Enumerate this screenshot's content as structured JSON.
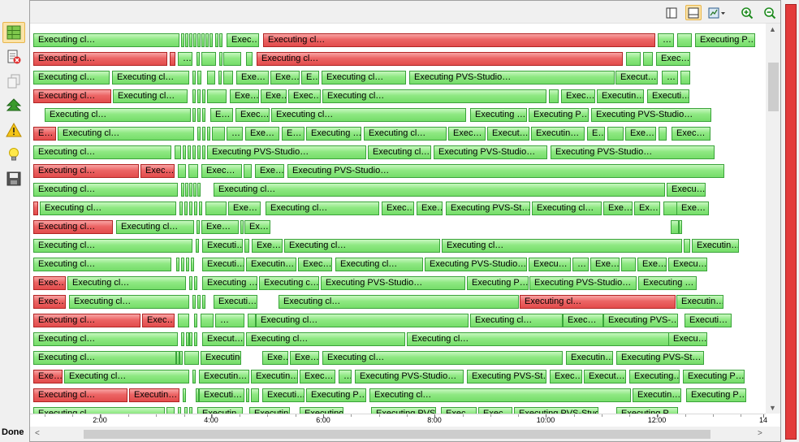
{
  "status": {
    "text": "Done"
  },
  "colors": {
    "success": "#76dd6a",
    "failure": "#e24c4c",
    "progress": "#e33b3b"
  },
  "left_toolbar": [
    {
      "name": "execution-grid-icon",
      "active": true
    },
    {
      "name": "remove-errors-icon",
      "active": false
    },
    {
      "name": "copy-icon",
      "active": false
    },
    {
      "name": "go-up-icon",
      "active": false
    },
    {
      "name": "warning-icon",
      "active": false
    },
    {
      "name": "lightbulb-icon",
      "active": false
    },
    {
      "name": "save-icon",
      "active": false
    }
  ],
  "top_toolbar": [
    {
      "name": "split-view-icon",
      "active": false
    },
    {
      "name": "single-view-icon",
      "active": true
    },
    {
      "name": "chart-dropdown-icon",
      "active": false
    },
    {
      "name": "zoom-in-icon",
      "active": false
    },
    {
      "name": "zoom-out-icon",
      "active": false
    }
  ],
  "axis": {
    "labels": [
      "2:00",
      "4:00",
      "6:00",
      "8:00",
      "10:00",
      "12:00",
      "14"
    ]
  },
  "rows": [
    [
      [
        4,
        180,
        "g",
        "Executing cl…"
      ],
      [
        186,
        4,
        "g",
        ""
      ],
      [
        191,
        4,
        "g",
        ""
      ],
      [
        196,
        4,
        "g",
        ""
      ],
      [
        201,
        4,
        "g",
        ""
      ],
      [
        206,
        4,
        "g",
        ""
      ],
      [
        211,
        4,
        "g",
        ""
      ],
      [
        216,
        4,
        "g",
        ""
      ],
      [
        221,
        4,
        "g",
        ""
      ],
      [
        228,
        4,
        "g",
        ""
      ],
      [
        233,
        4,
        "g",
        ""
      ],
      [
        242,
        40,
        "g",
        "Exec…"
      ],
      [
        287,
        483,
        "r",
        "Executing cl…"
      ],
      [
        773,
        20,
        "g",
        "…"
      ],
      [
        797,
        18,
        "g",
        ""
      ],
      [
        819,
        74,
        "g",
        "Executing P…"
      ]
    ],
    [
      [
        4,
        165,
        "r",
        "Executing cl…"
      ],
      [
        172,
        7,
        "r",
        ""
      ],
      [
        182,
        18,
        "g",
        "…"
      ],
      [
        205,
        4,
        "g",
        ""
      ],
      [
        211,
        18,
        "g",
        ""
      ],
      [
        233,
        4,
        "g",
        ""
      ],
      [
        238,
        22,
        "g",
        ""
      ],
      [
        266,
        8,
        "g",
        ""
      ],
      [
        279,
        451,
        "r",
        "Executing cl…"
      ],
      [
        734,
        18,
        "g",
        ""
      ],
      [
        755,
        12,
        "g",
        ""
      ],
      [
        771,
        42,
        "g",
        "Exec…"
      ]
    ],
    [
      [
        4,
        94,
        "g",
        "Executing cl…"
      ],
      [
        101,
        95,
        "g",
        "Executing cl…"
      ],
      [
        200,
        4,
        "g",
        ""
      ],
      [
        206,
        5,
        "g",
        ""
      ],
      [
        218,
        10,
        "g",
        ""
      ],
      [
        232,
        4,
        "g",
        ""
      ],
      [
        238,
        12,
        "g",
        ""
      ],
      [
        254,
        40,
        "g",
        "Exe…"
      ],
      [
        296,
        36,
        "g",
        "Exe…"
      ],
      [
        334,
        22,
        "g",
        "E…"
      ],
      [
        359,
        104,
        "g",
        "Executing cl…"
      ],
      [
        467,
        253,
        "g",
        "Executing PVS-Studio…"
      ],
      [
        721,
        52,
        "g",
        "Execut…"
      ],
      [
        778,
        20,
        "g",
        "…"
      ],
      [
        801,
        12,
        "g",
        ""
      ]
    ],
    [
      [
        4,
        96,
        "r",
        "Executing cl…"
      ],
      [
        102,
        92,
        "g",
        "Executing cl…"
      ],
      [
        200,
        4,
        "g",
        ""
      ],
      [
        206,
        4,
        "g",
        ""
      ],
      [
        212,
        4,
        "g",
        ""
      ],
      [
        218,
        24,
        "g",
        ""
      ],
      [
        246,
        36,
        "g",
        "Exe…"
      ],
      [
        284,
        32,
        "g",
        "Exe…"
      ],
      [
        318,
        40,
        "g",
        "Exec…"
      ],
      [
        360,
        276,
        "g",
        "Executing cl…"
      ],
      [
        639,
        12,
        "g",
        ""
      ],
      [
        654,
        42,
        "g",
        "Exec…"
      ],
      [
        698,
        58,
        "g",
        "Executin…"
      ],
      [
        760,
        52,
        "g",
        "Executi…"
      ]
    ],
    [
      [
        18,
        180,
        "g",
        "Executing cl…"
      ],
      [
        200,
        4,
        "g",
        ""
      ],
      [
        206,
        4,
        "g",
        ""
      ],
      [
        212,
        4,
        "g",
        ""
      ],
      [
        222,
        28,
        "g",
        "E…"
      ],
      [
        253,
        42,
        "g",
        "Exec…"
      ],
      [
        297,
        240,
        "g",
        "Executing cl…"
      ],
      [
        542,
        70,
        "g",
        "Executing …"
      ],
      [
        614,
        74,
        "g",
        "Executing P…"
      ],
      [
        691,
        148,
        "g",
        "Executing PVS-Studio…"
      ]
    ],
    [
      [
        4,
        28,
        "r",
        "E…"
      ],
      [
        34,
        168,
        "g",
        "Executing cl…"
      ],
      [
        206,
        4,
        "g",
        ""
      ],
      [
        212,
        4,
        "g",
        ""
      ],
      [
        218,
        4,
        "g",
        ""
      ],
      [
        224,
        16,
        "g",
        ""
      ],
      [
        242,
        20,
        "g",
        "…"
      ],
      [
        265,
        42,
        "g",
        "Exe…"
      ],
      [
        310,
        28,
        "g",
        "E…"
      ],
      [
        340,
        68,
        "g",
        "Executing …"
      ],
      [
        411,
        102,
        "g",
        "Executing cl…"
      ],
      [
        515,
        46,
        "g",
        "Exec…"
      ],
      [
        563,
        52,
        "g",
        "Execut…"
      ],
      [
        617,
        66,
        "g",
        "Executin…"
      ],
      [
        686,
        22,
        "g",
        "E…"
      ],
      [
        711,
        20,
        "g",
        ""
      ],
      [
        733,
        38,
        "g",
        "Exe…"
      ],
      [
        774,
        10,
        "g",
        ""
      ],
      [
        790,
        48,
        "g",
        "Exec…"
      ]
    ],
    [
      [
        4,
        170,
        "g",
        "Executing cl…"
      ],
      [
        178,
        8,
        "g",
        ""
      ],
      [
        188,
        4,
        "g",
        ""
      ],
      [
        194,
        4,
        "g",
        ""
      ],
      [
        200,
        4,
        "g",
        ""
      ],
      [
        206,
        4,
        "g",
        ""
      ],
      [
        212,
        4,
        "g",
        ""
      ],
      [
        218,
        196,
        "g",
        "Executing PVS-Studio…"
      ],
      [
        416,
        78,
        "g",
        "Executing cl…"
      ],
      [
        497,
        140,
        "g",
        "Executing PVS-Studio…"
      ],
      [
        641,
        202,
        "g",
        "Executing PVS-Studio…"
      ]
    ],
    [
      [
        4,
        130,
        "r",
        "Executing cl…"
      ],
      [
        136,
        42,
        "r",
        "Exec…"
      ],
      [
        182,
        10,
        "g",
        ""
      ],
      [
        195,
        12,
        "g",
        ""
      ],
      [
        211,
        50,
        "g",
        "Exec…"
      ],
      [
        263,
        10,
        "g",
        ""
      ],
      [
        277,
        36,
        "g",
        "Exe…"
      ],
      [
        317,
        538,
        "g",
        "Executing PVS-Studio…"
      ]
    ],
    [
      [
        4,
        178,
        "g",
        "Executing cl…"
      ],
      [
        186,
        4,
        "g",
        ""
      ],
      [
        191,
        4,
        "g",
        ""
      ],
      [
        196,
        4,
        "g",
        ""
      ],
      [
        201,
        4,
        "g",
        ""
      ],
      [
        206,
        4,
        "g",
        ""
      ],
      [
        226,
        556,
        "g",
        "Executing cl…"
      ],
      [
        784,
        48,
        "g",
        "Execu…"
      ]
    ],
    [
      [
        4,
        6,
        "r",
        ""
      ],
      [
        12,
        168,
        "g",
        "Executing cl…"
      ],
      [
        184,
        4,
        "g",
        ""
      ],
      [
        190,
        4,
        "g",
        ""
      ],
      [
        196,
        4,
        "g",
        ""
      ],
      [
        202,
        4,
        "g",
        ""
      ],
      [
        208,
        4,
        "g",
        ""
      ],
      [
        216,
        26,
        "g",
        ""
      ],
      [
        244,
        40,
        "g",
        "Exe…"
      ],
      [
        290,
        140,
        "g",
        "Executing cl…"
      ],
      [
        433,
        40,
        "g",
        "Exec…"
      ],
      [
        476,
        32,
        "g",
        "Exe…"
      ],
      [
        512,
        104,
        "g",
        "Executing PVS-St…"
      ],
      [
        618,
        86,
        "g",
        "Executing cl…"
      ],
      [
        706,
        36,
        "g",
        "Exe…"
      ],
      [
        744,
        32,
        "g",
        "Ex…"
      ],
      [
        780,
        18,
        "g",
        ""
      ],
      [
        796,
        40,
        "g",
        "Exe…"
      ]
    ],
    [
      [
        4,
        98,
        "r",
        "Executing cl…"
      ],
      [
        106,
        96,
        "g",
        "Executing cl…"
      ],
      [
        205,
        4,
        "g",
        ""
      ],
      [
        211,
        46,
        "g",
        "Exe…"
      ],
      [
        259,
        4,
        "g",
        ""
      ],
      [
        264,
        32,
        "g",
        "Ex…"
      ],
      [
        789,
        10,
        "g",
        ""
      ],
      [
        799,
        4,
        "g",
        ""
      ]
    ],
    [
      [
        4,
        196,
        "g",
        "Executing cl…"
      ],
      [
        204,
        4,
        "g",
        ""
      ],
      [
        212,
        50,
        "g",
        "Executi…"
      ],
      [
        264,
        6,
        "g",
        ""
      ],
      [
        273,
        38,
        "g",
        "Exe…"
      ],
      [
        313,
        192,
        "g",
        "Executing cl…"
      ],
      [
        507,
        296,
        "g",
        "Executing cl…"
      ],
      [
        805,
        8,
        "g",
        ""
      ],
      [
        815,
        58,
        "g",
        "Executin…"
      ]
    ],
    [
      [
        4,
        170,
        "g",
        "Executing cl…"
      ],
      [
        180,
        4,
        "g",
        ""
      ],
      [
        186,
        4,
        "g",
        ""
      ],
      [
        192,
        4,
        "g",
        ""
      ],
      [
        198,
        4,
        "g",
        ""
      ],
      [
        212,
        52,
        "g",
        "Executi…"
      ],
      [
        266,
        62,
        "g",
        "Executin…"
      ],
      [
        330,
        42,
        "g",
        "Exec…"
      ],
      [
        376,
        108,
        "g",
        "Executing cl…"
      ],
      [
        486,
        126,
        "g",
        "Executing PVS-Studio…"
      ],
      [
        614,
        52,
        "g",
        "Execu…"
      ],
      [
        668,
        20,
        "g",
        "…"
      ],
      [
        690,
        36,
        "g",
        "Exe…"
      ],
      [
        728,
        18,
        "g",
        ""
      ],
      [
        748,
        36,
        "g",
        "Exe…"
      ],
      [
        786,
        48,
        "g",
        "Execu…"
      ]
    ],
    [
      [
        4,
        40,
        "r",
        "Exec…"
      ],
      [
        46,
        146,
        "g",
        "Executing cl…"
      ],
      [
        196,
        4,
        "g",
        ""
      ],
      [
        202,
        4,
        "g",
        ""
      ],
      [
        212,
        68,
        "g",
        "Executing …"
      ],
      [
        282,
        74,
        "g",
        "Executing c…"
      ],
      [
        358,
        178,
        "g",
        "Executing PVS-Studio…"
      ],
      [
        538,
        76,
        "g",
        "Executing P…"
      ],
      [
        615,
        132,
        "g",
        "Executing PVS-Studio…"
      ],
      [
        749,
        72,
        "g",
        "Executing …"
      ]
    ],
    [
      [
        4,
        40,
        "r",
        "Exec…"
      ],
      [
        48,
        148,
        "g",
        "Executing cl…"
      ],
      [
        200,
        4,
        "g",
        ""
      ],
      [
        206,
        4,
        "g",
        ""
      ],
      [
        212,
        4,
        "g",
        ""
      ],
      [
        226,
        54,
        "g",
        "Executi…"
      ],
      [
        306,
        296,
        "g",
        "Executing cl…"
      ],
      [
        603,
        192,
        "r",
        "Executing cl…"
      ],
      [
        796,
        58,
        "g",
        "Executin…"
      ]
    ],
    [
      [
        4,
        132,
        "r",
        "Executing cl…"
      ],
      [
        138,
        40,
        "r",
        "Exec…"
      ],
      [
        182,
        14,
        "g",
        ""
      ],
      [
        202,
        4,
        "g",
        ""
      ],
      [
        210,
        16,
        "g",
        ""
      ],
      [
        228,
        36,
        "g",
        "…"
      ],
      [
        268,
        10,
        "g",
        ""
      ],
      [
        278,
        262,
        "g",
        "Executing cl…"
      ],
      [
        542,
        114,
        "g",
        "Executing cl…"
      ],
      [
        656,
        50,
        "g",
        "Exec…"
      ],
      [
        706,
        92,
        "g",
        "Executing PVS-…"
      ],
      [
        806,
        58,
        "g",
        "Executi…"
      ]
    ],
    [
      [
        4,
        178,
        "g",
        "Executing cl…"
      ],
      [
        186,
        4,
        "g",
        ""
      ],
      [
        192,
        4,
        "g",
        ""
      ],
      [
        196,
        4,
        "g",
        ""
      ],
      [
        202,
        4,
        "g",
        ""
      ],
      [
        212,
        52,
        "g",
        "Execut…"
      ],
      [
        266,
        196,
        "g",
        "Executing cl…"
      ],
      [
        464,
        342,
        "g",
        "Executing cl…"
      ],
      [
        786,
        48,
        "g",
        "Execu…"
      ]
    ],
    [
      [
        4,
        176,
        "g",
        "Executing cl…"
      ],
      [
        180,
        4,
        "g",
        ""
      ],
      [
        184,
        4,
        "g",
        ""
      ],
      [
        190,
        18,
        "g",
        ""
      ],
      [
        210,
        50,
        "g",
        "Executing P…"
      ],
      [
        286,
        32,
        "g",
        "Exe…"
      ],
      [
        320,
        36,
        "g",
        "Exe…"
      ],
      [
        360,
        296,
        "g",
        "Executing cl…"
      ],
      [
        660,
        58,
        "g",
        "Executin…"
      ],
      [
        722,
        108,
        "g",
        "Executing PVS-St…"
      ]
    ],
    [
      [
        4,
        36,
        "r",
        "Exe…"
      ],
      [
        42,
        154,
        "g",
        "Executing cl…"
      ],
      [
        200,
        4,
        "g",
        ""
      ],
      [
        208,
        62,
        "g",
        "Executin…"
      ],
      [
        272,
        58,
        "g",
        "Executin…"
      ],
      [
        332,
        44,
        "g",
        "Exec…"
      ],
      [
        380,
        16,
        "g",
        "…"
      ],
      [
        400,
        134,
        "g",
        "Executing PVS-Studio…"
      ],
      [
        538,
        98,
        "g",
        "Executing PVS-St…"
      ],
      [
        640,
        40,
        "g",
        "Exec…"
      ],
      [
        682,
        52,
        "g",
        "Execut…"
      ],
      [
        738,
        62,
        "g",
        "Executing…"
      ],
      [
        804,
        76,
        "g",
        "Executing P…"
      ]
    ],
    [
      [
        4,
        116,
        "r",
        "Executing cl…"
      ],
      [
        122,
        62,
        "r",
        "Executin…"
      ],
      [
        188,
        4,
        "g",
        ""
      ],
      [
        204,
        4,
        "g",
        ""
      ],
      [
        208,
        56,
        "g",
        "Executi…"
      ],
      [
        266,
        4,
        "g",
        ""
      ],
      [
        272,
        10,
        "g",
        ""
      ],
      [
        286,
        52,
        "g",
        "Executi…"
      ],
      [
        340,
        74,
        "g",
        "Executing P…"
      ],
      [
        418,
        322,
        "g",
        "Executing cl…"
      ],
      [
        742,
        60,
        "g",
        "Executin…"
      ],
      [
        808,
        74,
        "g",
        "Executing P…"
      ]
    ],
    [
      [
        4,
        162,
        "g",
        "Executing cl…"
      ],
      [
        168,
        10,
        "g",
        ""
      ],
      [
        182,
        4,
        "g",
        ""
      ],
      [
        190,
        4,
        "g",
        ""
      ],
      [
        196,
        4,
        "g",
        ""
      ],
      [
        206,
        56,
        "g",
        "Executin…"
      ],
      [
        270,
        50,
        "g",
        "Executin…"
      ],
      [
        332,
        54,
        "g",
        "Executing PV…"
      ],
      [
        420,
        80,
        "g",
        "Executing PVS…"
      ],
      [
        506,
        44,
        "g",
        "Exec…"
      ],
      [
        552,
        42,
        "g",
        "Exec…"
      ],
      [
        596,
        104,
        "g",
        "Executing PVS-Stud…"
      ],
      [
        722,
        76,
        "g",
        "Executing P…"
      ]
    ]
  ]
}
